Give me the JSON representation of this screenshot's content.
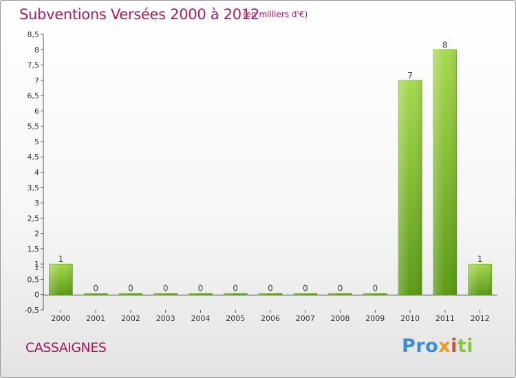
{
  "title": "Subventions Versées 2000 à 2012",
  "subtitle": "(en milliers d'€)",
  "commune": "CASSAIGNES",
  "logo": {
    "p1": "Pro",
    "p2": "x",
    "p3": "i",
    "p4": "ti",
    "colors": [
      "#3a8ddc",
      "#f29a1c",
      "#e2462e",
      "#8cc63e"
    ]
  },
  "chart_data": {
    "type": "bar",
    "title": "Subventions Versées 2000 à 2012",
    "subtitle": "(en milliers d'€)",
    "xlabel": "",
    "ylabel": "",
    "categories": [
      "2000",
      "2001",
      "2002",
      "2003",
      "2004",
      "2005",
      "2006",
      "2007",
      "2008",
      "2009",
      "2010",
      "2011",
      "2012"
    ],
    "values": [
      1,
      0,
      0,
      0,
      0,
      0,
      0,
      0,
      0,
      0,
      7,
      8,
      1
    ],
    "data_labels": [
      "1",
      "0",
      "0",
      "0",
      "0",
      "0",
      "0",
      "0",
      "0",
      "0",
      "7",
      "8",
      "1"
    ],
    "ylim": [
      -0.5,
      8.5
    ],
    "y_ticks": [
      "-0,5",
      "0",
      "0,5",
      "1",
      "1",
      "1,5",
      "2",
      "2,5",
      "3",
      "3,5",
      "4",
      "4,5",
      "5",
      "5,5",
      "6",
      "6,5",
      "7",
      "7,5",
      "8",
      "8,5"
    ],
    "y_tick_values": [
      -0.5,
      0,
      0.5,
      0.9,
      1,
      1.5,
      2,
      2.5,
      3,
      3.5,
      4,
      4.5,
      5,
      5.5,
      6,
      6.5,
      7,
      7.5,
      8,
      8.5
    ],
    "grid": false,
    "bar_color": "#7ab82a",
    "legend": "none"
  }
}
